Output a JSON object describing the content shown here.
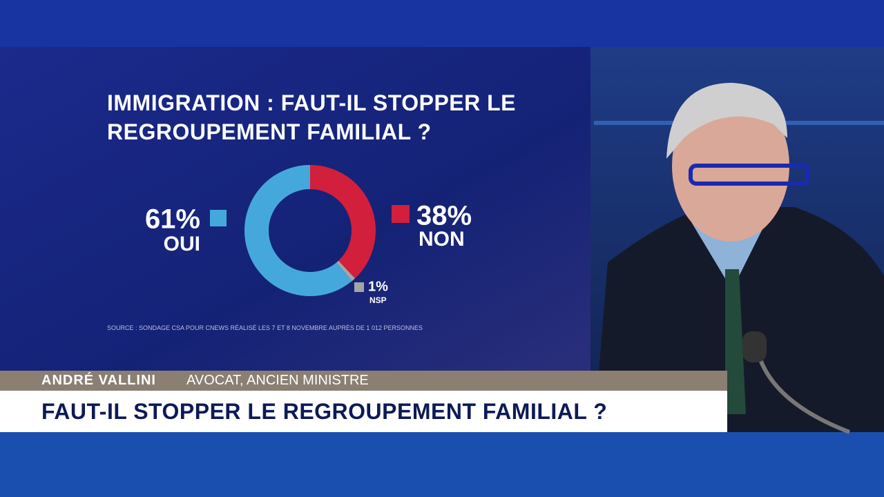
{
  "chart_data": {
    "type": "donut",
    "title": "IMMIGRATION : FAUT-IL STOPPER LE REGROUPEMENT FAMILIAL ?",
    "categories": [
      "NON",
      "NSP",
      "OUI"
    ],
    "values": [
      38,
      1,
      61
    ],
    "value_labels": [
      "38%",
      "1%",
      "61%"
    ],
    "colors": [
      "#d21f3c",
      "#a5a5a5",
      "#45a8dc"
    ],
    "source": "SOURCE : SONDAGE CSA POUR CNEWS RÉALISÉ LES 7 ET 8 NOVEMBRE AUPRÈS DE 1 012 PERSONNES"
  },
  "lower_third": {
    "name": "ANDRÉ VALLINI",
    "role": "AVOCAT, ANCIEN MINISTRE",
    "headline": "FAUT-IL STOPPER LE REGROUPEMENT FAMILIAL ?"
  }
}
